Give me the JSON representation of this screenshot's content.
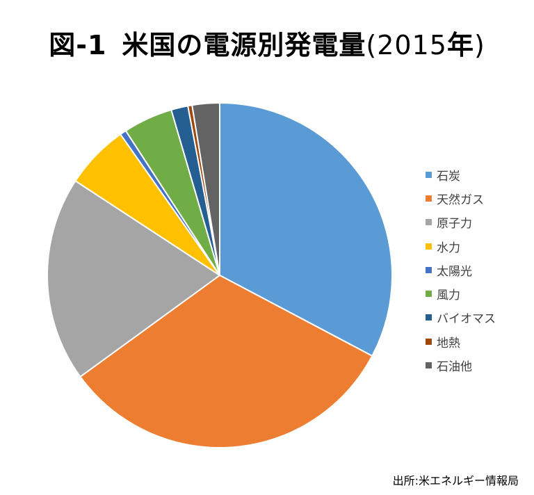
{
  "title": {
    "prefix": "図-1",
    "main": "米国の電源別発電量",
    "open": "(",
    "year": "2015",
    "nen": "年",
    "close": ")"
  },
  "source": "出所:米エネルギー情報局",
  "chart_data": {
    "type": "pie",
    "title": "図-1 米国の電源別発電量(2015年)",
    "legend_position": "right",
    "unit": "%",
    "categories": [
      "石炭",
      "天然ガス",
      "原子力",
      "水力",
      "太陽光",
      "風力",
      "バイオマス",
      "地熱",
      "石油他"
    ],
    "values": [
      33.2,
      32.7,
      19.5,
      6.1,
      0.6,
      4.7,
      1.6,
      0.4,
      2.6
    ],
    "colors": [
      "#5B9BD5",
      "#ED7D31",
      "#A5A5A5",
      "#FFC000",
      "#4472C4",
      "#70AD47",
      "#255E91",
      "#9E480E",
      "#636363"
    ]
  }
}
